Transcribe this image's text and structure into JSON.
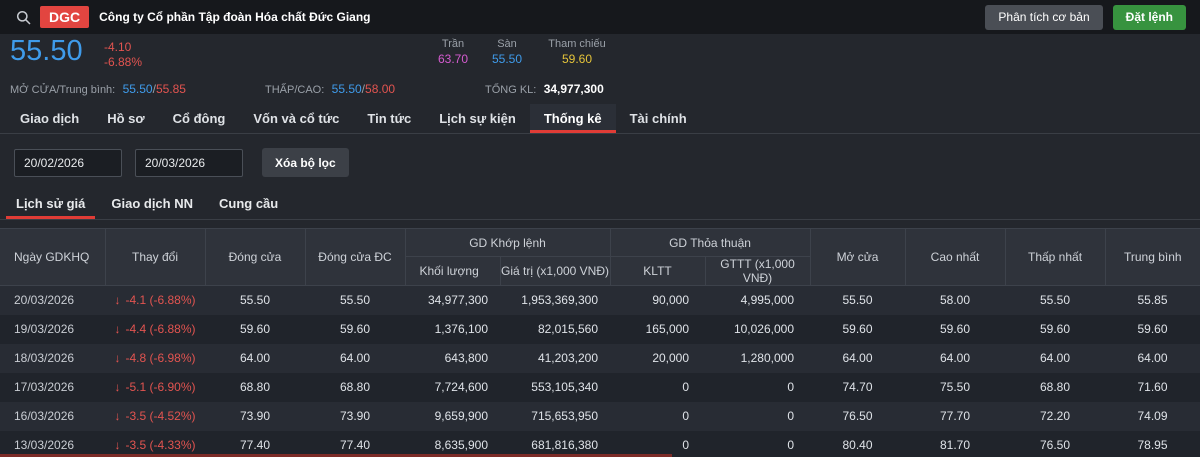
{
  "topbar": {
    "ticker": "DGC",
    "company_name": "Công ty Cổ phần Tập đoàn Hóa chất Đức Giang",
    "analysis_button": "Phân tích cơ bản",
    "order_button": "Đặt lệnh"
  },
  "quote": {
    "price": "55.50",
    "change": "-4.10",
    "change_percent": "-6.88%",
    "open_avg_label": "MỞ CỬA/Trung bình:",
    "open": "55.50",
    "average": "55.85",
    "low_high_label": "THẤP/CAO:",
    "low": "55.50",
    "high": "58.00",
    "separator": "/",
    "ceiling_label": "Trần",
    "ceiling": "63.70",
    "floor_label": "Sàn",
    "floor": "55.50",
    "reference_label": "Tham chiếu",
    "reference": "59.60",
    "total_volume_label": "TỔNG KL:",
    "total_volume": "34,977,300"
  },
  "colors": {
    "accent_red": "#e03c36",
    "down_red": "#e25450",
    "price_blue": "#3f9bea",
    "ceiling_magenta": "#d55bd0",
    "reference_yellow": "#e5c43a",
    "order_green": "#37933f",
    "badge_red": "#e24540"
  },
  "main_tabs": [
    {
      "name": "giao-dich",
      "label": "Giao dịch",
      "active": false
    },
    {
      "name": "ho-so",
      "label": "Hồ sơ",
      "active": false
    },
    {
      "name": "co-dong",
      "label": "Cổ đông",
      "active": false
    },
    {
      "name": "von-va-co-tuc",
      "label": "Vốn và cổ tức",
      "active": false
    },
    {
      "name": "tin-tuc",
      "label": "Tin tức",
      "active": false
    },
    {
      "name": "lich-su-kien",
      "label": "Lịch sự kiện",
      "active": false
    },
    {
      "name": "thong-ke",
      "label": "Thống kê",
      "active": true
    },
    {
      "name": "tai-chinh",
      "label": "Tài chính",
      "active": false
    }
  ],
  "filters": {
    "date_from": "20/02/2026",
    "date_to": "20/03/2026",
    "clear_button": "Xóa bộ lọc"
  },
  "sub_tabs": [
    {
      "name": "lich-su-gia",
      "label": "Lịch sử giá",
      "active": true
    },
    {
      "name": "giao-dich-nn",
      "label": "Giao dịch NN",
      "active": false
    },
    {
      "name": "cung-cau",
      "label": "Cung cầu",
      "active": false
    }
  ],
  "table": {
    "headers": {
      "date": "Ngày GDKHQ",
      "change": "Thay đổi",
      "close": "Đóng cửa",
      "adj_close": "Đóng cửa ĐC",
      "matched_group": "GD Khớp lệnh",
      "matched_volume": "Khối lượng",
      "matched_value": "Giá trị (x1,000 VNĐ)",
      "negotiated_group": "GD Thỏa thuận",
      "negotiated_volume": "KLTT",
      "negotiated_value": "GTTT (x1,000 VNĐ)",
      "open": "Mở cửa",
      "high": "Cao nhất",
      "low": "Thấp nhất",
      "average": "Trung bình"
    },
    "down_arrow_icon": "↓",
    "rows": [
      {
        "direction": "down",
        "cells": [
          "20/03/2026",
          "-4.1 (-6.88%)",
          "55.50",
          "55.50",
          "34,977,300",
          "1,953,369,300",
          "90,000",
          "4,995,000",
          "55.50",
          "58.00",
          "55.50",
          "55.85"
        ]
      },
      {
        "direction": "down",
        "cells": [
          "19/03/2026",
          "-4.4 (-6.88%)",
          "59.60",
          "59.60",
          "1,376,100",
          "82,015,560",
          "165,000",
          "10,026,000",
          "59.60",
          "59.60",
          "59.60",
          "59.60"
        ]
      },
      {
        "direction": "down",
        "cells": [
          "18/03/2026",
          "-4.8 (-6.98%)",
          "64.00",
          "64.00",
          "643,800",
          "41,203,200",
          "20,000",
          "1,280,000",
          "64.00",
          "64.00",
          "64.00",
          "64.00"
        ]
      },
      {
        "direction": "down",
        "cells": [
          "17/03/2026",
          "-5.1 (-6.90%)",
          "68.80",
          "68.80",
          "7,724,600",
          "553,105,340",
          "0",
          "0",
          "74.70",
          "75.50",
          "68.80",
          "71.60"
        ]
      },
      {
        "direction": "down",
        "cells": [
          "16/03/2026",
          "-3.5 (-4.52%)",
          "73.90",
          "73.90",
          "9,659,900",
          "715,653,950",
          "0",
          "0",
          "76.50",
          "77.70",
          "72.20",
          "74.09"
        ]
      },
      {
        "direction": "down",
        "cells": [
          "13/03/2026",
          "-3.5 (-4.33%)",
          "77.40",
          "77.40",
          "8,635,900",
          "681,816,380",
          "0",
          "0",
          "80.40",
          "81.70",
          "76.50",
          "78.95"
        ]
      }
    ]
  }
}
